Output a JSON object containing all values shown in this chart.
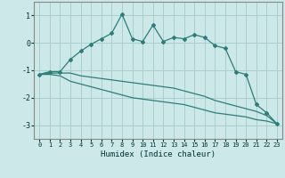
{
  "background_color": "#cce8e8",
  "grid_color": "#aacece",
  "line_color": "#2d7d78",
  "xlabel": "Humidex (Indice chaleur)",
  "xlim": [
    -0.5,
    23.5
  ],
  "ylim": [
    -3.5,
    1.5
  ],
  "yticks": [
    -3,
    -2,
    -1,
    0,
    1
  ],
  "xticks": [
    0,
    1,
    2,
    3,
    4,
    5,
    6,
    7,
    8,
    9,
    10,
    11,
    12,
    13,
    14,
    15,
    16,
    17,
    18,
    19,
    20,
    21,
    22,
    23
  ],
  "series1_x": [
    0,
    1,
    2,
    3,
    4,
    5,
    6,
    7,
    8,
    9,
    10,
    11,
    12,
    13,
    14,
    15,
    16,
    17,
    18,
    19,
    20,
    21,
    22,
    23
  ],
  "series1_y": [
    -1.15,
    -1.05,
    -1.05,
    -0.6,
    -0.3,
    -0.05,
    0.15,
    0.35,
    1.05,
    0.15,
    0.05,
    0.65,
    0.05,
    0.2,
    0.15,
    0.3,
    0.2,
    -0.1,
    -0.2,
    -1.05,
    -1.15,
    -2.25,
    -2.55,
    -2.95
  ],
  "series2_x": [
    0,
    1,
    2,
    3,
    4,
    5,
    6,
    7,
    8,
    9,
    10,
    11,
    12,
    13,
    14,
    15,
    16,
    17,
    18,
    19,
    20,
    21,
    22,
    23
  ],
  "series2_y": [
    -1.15,
    -1.1,
    -1.1,
    -1.1,
    -1.2,
    -1.25,
    -1.3,
    -1.35,
    -1.4,
    -1.45,
    -1.5,
    -1.55,
    -1.6,
    -1.65,
    -1.75,
    -1.85,
    -1.95,
    -2.1,
    -2.2,
    -2.3,
    -2.4,
    -2.5,
    -2.65,
    -2.95
  ],
  "series3_x": [
    0,
    1,
    2,
    3,
    4,
    5,
    6,
    7,
    8,
    9,
    10,
    11,
    12,
    13,
    14,
    15,
    16,
    17,
    18,
    19,
    20,
    21,
    22,
    23
  ],
  "series3_y": [
    -1.15,
    -1.15,
    -1.2,
    -1.4,
    -1.5,
    -1.6,
    -1.7,
    -1.8,
    -1.9,
    -2.0,
    -2.05,
    -2.1,
    -2.15,
    -2.2,
    -2.25,
    -2.35,
    -2.45,
    -2.55,
    -2.6,
    -2.65,
    -2.7,
    -2.8,
    -2.85,
    -2.95
  ]
}
